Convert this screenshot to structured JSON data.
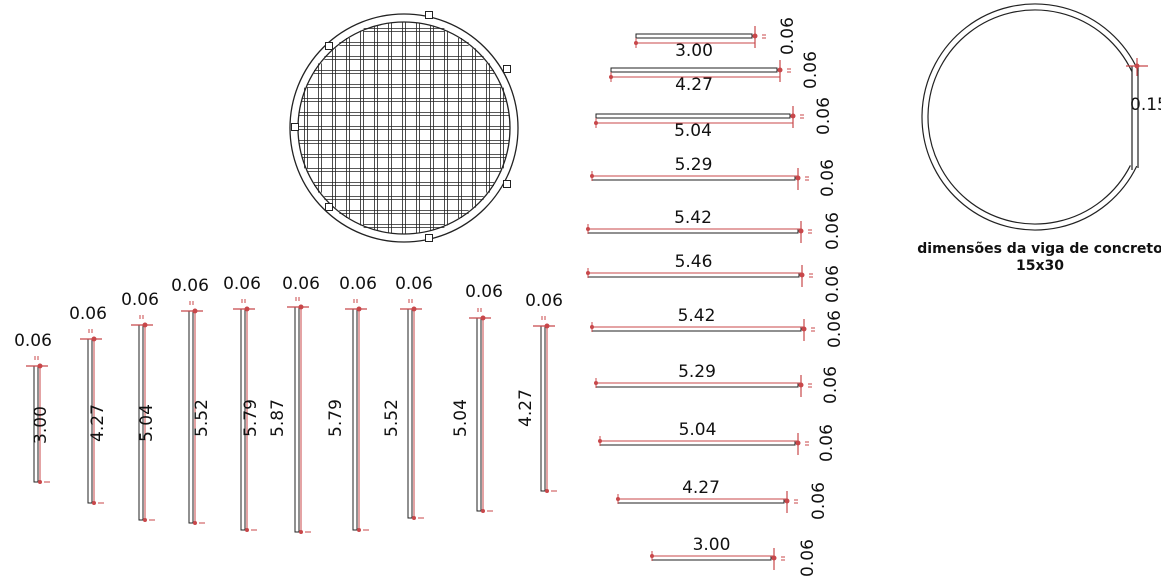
{
  "colors": {
    "bar": "#222222",
    "dimension": "#c8474a",
    "text": "#111111",
    "background": "#ffffff"
  },
  "horizontal_bars": [
    {
      "length": "3.00",
      "thickness": "0.06"
    },
    {
      "length": "4.27",
      "thickness": "0.06"
    },
    {
      "length": "5.04",
      "thickness": "0.06"
    },
    {
      "length": "5.29",
      "thickness": "0.06"
    },
    {
      "length": "5.42",
      "thickness": "0.06"
    },
    {
      "length": "5.46",
      "thickness": "0.06"
    },
    {
      "length": "5.42",
      "thickness": "0.06"
    },
    {
      "length": "5.29",
      "thickness": "0.06"
    },
    {
      "length": "5.04",
      "thickness": "0.06"
    },
    {
      "length": "4.27",
      "thickness": "0.06"
    },
    {
      "length": "3.00",
      "thickness": "0.06"
    }
  ],
  "vertical_bars": [
    {
      "length": "3.00",
      "thickness": "0.06"
    },
    {
      "length": "4.27",
      "thickness": "0.06"
    },
    {
      "length": "5.04",
      "thickness": "0.06"
    },
    {
      "length": "5.52",
      "thickness": "0.06"
    },
    {
      "length": "5.79",
      "thickness": "0.06"
    },
    {
      "length": "5.87",
      "thickness": "0.06"
    },
    {
      "length": "5.79",
      "thickness": "0.06"
    },
    {
      "length": "5.52",
      "thickness": "0.06"
    },
    {
      "length": "5.04",
      "thickness": "0.06"
    },
    {
      "length": "4.27",
      "thickness": "0.06"
    }
  ],
  "ring_beam": {
    "dimension": "0.15"
  },
  "caption": {
    "line1": "dimensões da viga de concreto",
    "line2": "15x30"
  }
}
